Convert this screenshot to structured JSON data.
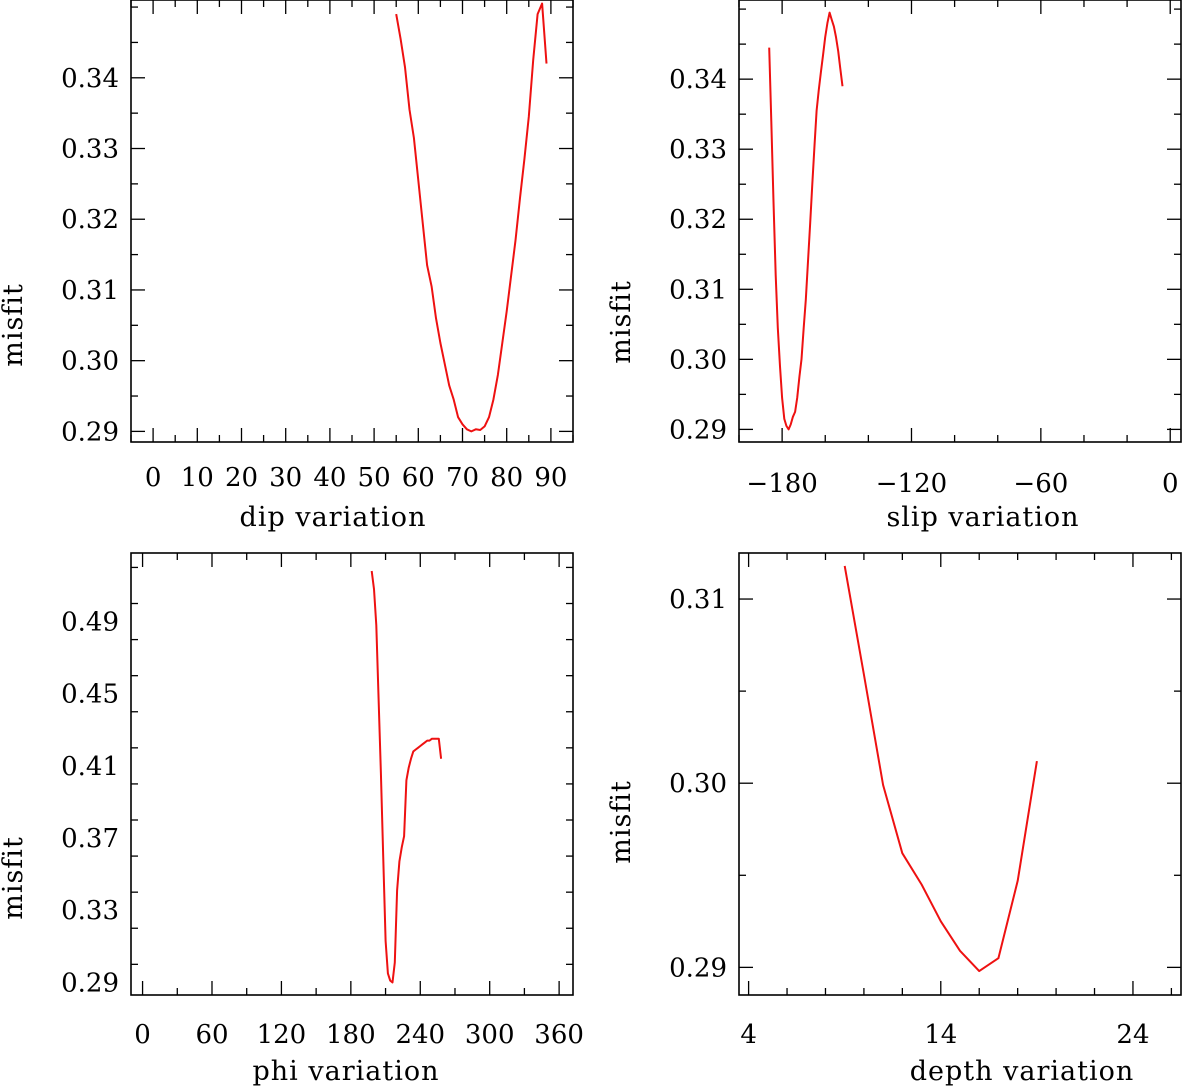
{
  "colors": {
    "curve": "#ee1111",
    "axis": "#000000",
    "background": "#ffffff"
  },
  "chart_data": [
    {
      "type": "line",
      "title": "",
      "xlabel": "dip    variation",
      "ylabel": "misfit",
      "xlim": [
        -5,
        95
      ],
      "ylim": [
        0.2885,
        0.351
      ],
      "xticks": [
        0,
        10,
        20,
        30,
        40,
        50,
        60,
        70,
        80,
        90
      ],
      "xtick_labels": [
        "0",
        "10",
        "20",
        "30",
        "40",
        "50",
        "60",
        "70",
        "80",
        "90"
      ],
      "x_minor_step": 5,
      "yticks": [
        0.29,
        0.3,
        0.31,
        0.32,
        0.33,
        0.34
      ],
      "ytick_labels": [
        "0.29",
        "0.30",
        "0.31",
        "0.32",
        "0.33",
        "0.34"
      ],
      "y_minor_step": 0.005,
      "grid": false,
      "series": [
        {
          "name": "misfit",
          "x": [
            55,
            56,
            57,
            58,
            59,
            60,
            61,
            62,
            63,
            64,
            65,
            66,
            67,
            68,
            69,
            70,
            71,
            72,
            73,
            74,
            75,
            76,
            77,
            78,
            79,
            80,
            81,
            82,
            83,
            84,
            85,
            86,
            87,
            88,
            89
          ],
          "y": [
            0.349,
            0.3455,
            0.3415,
            0.3355,
            0.3315,
            0.3255,
            0.3195,
            0.3135,
            0.3105,
            0.306,
            0.3025,
            0.2995,
            0.2965,
            0.2945,
            0.292,
            0.291,
            0.2903,
            0.29,
            0.2903,
            0.2902,
            0.2907,
            0.292,
            0.2945,
            0.298,
            0.3025,
            0.307,
            0.312,
            0.317,
            0.323,
            0.3285,
            0.3345,
            0.3425,
            0.349,
            0.3505,
            0.342
          ],
          "color": "#ee1111"
        }
      ]
    },
    {
      "type": "line",
      "title": "",
      "xlabel": "slip    variation",
      "ylabel": "misfit",
      "xlim": [
        -200,
        5
      ],
      "ylim": [
        0.2882,
        0.3513
      ],
      "xticks": [
        -180,
        -120,
        -60,
        0
      ],
      "xtick_labels": [
        "−180",
        "−120",
        "−60",
        "0"
      ],
      "x_minor_step": 20,
      "yticks": [
        0.29,
        0.3,
        0.31,
        0.32,
        0.33,
        0.34
      ],
      "ytick_labels": [
        "0.29",
        "0.30",
        "0.31",
        "0.32",
        "0.33",
        "0.34"
      ],
      "y_minor_step": 0.005,
      "grid": false,
      "series": [
        {
          "name": "misfit",
          "x": [
            -186,
            -185,
            -184,
            -183,
            -182,
            -181,
            -180,
            -179,
            -178,
            -177,
            -176,
            -175,
            -174,
            -173,
            -172,
            -171,
            -170,
            -169,
            -168,
            -167,
            -166,
            -165,
            -164,
            -163,
            -162,
            -161,
            -160,
            -159,
            -158,
            -157,
            -156,
            -155,
            -154,
            -153,
            -152
          ],
          "y": [
            0.3445,
            0.334,
            0.3225,
            0.312,
            0.3045,
            0.299,
            0.2945,
            0.2915,
            0.2905,
            0.29,
            0.2907,
            0.2918,
            0.2925,
            0.2945,
            0.2975,
            0.3,
            0.3045,
            0.3085,
            0.314,
            0.3195,
            0.325,
            0.3305,
            0.3355,
            0.3385,
            0.341,
            0.3435,
            0.346,
            0.348,
            0.3495,
            0.3485,
            0.3475,
            0.346,
            0.344,
            0.3415,
            0.339
          ],
          "color": "#ee1111"
        }
      ]
    },
    {
      "type": "line",
      "title": "",
      "xlabel": "phi    variation",
      "ylabel": "misfit",
      "xlim": [
        -10,
        372
      ],
      "ylim": [
        0.283,
        0.528
      ],
      "xticks": [
        0,
        60,
        120,
        180,
        240,
        300,
        360
      ],
      "xtick_labels": [
        "0",
        "60",
        "120",
        "180",
        "240",
        "300",
        "360"
      ],
      "x_minor_step": 30,
      "yticks": [
        0.29,
        0.33,
        0.37,
        0.41,
        0.45,
        0.49
      ],
      "ytick_labels": [
        "0.29",
        "0.33",
        "0.37",
        "0.41",
        "0.45",
        "0.49"
      ],
      "y_minor_step": 0.02,
      "grid": false,
      "series": [
        {
          "name": "misfit",
          "x": [
            198,
            200,
            202,
            204,
            206,
            208,
            210,
            212,
            214,
            216,
            218,
            220,
            222,
            224,
            226,
            228,
            230,
            232,
            234,
            236,
            238,
            240,
            242,
            244,
            246,
            248,
            250,
            252,
            254,
            256,
            258
          ],
          "y": [
            0.518,
            0.508,
            0.488,
            0.447,
            0.406,
            0.36,
            0.313,
            0.295,
            0.291,
            0.29,
            0.301,
            0.341,
            0.357,
            0.365,
            0.371,
            0.402,
            0.409,
            0.414,
            0.418,
            0.419,
            0.42,
            0.421,
            0.422,
            0.423,
            0.424,
            0.424,
            0.425,
            0.425,
            0.425,
            0.425,
            0.414
          ],
          "color": "#ee1111"
        }
      ]
    },
    {
      "type": "line",
      "title": "",
      "xlabel": "depth    variation",
      "ylabel": "misfit",
      "xlim": [
        3.5,
        26.5
      ],
      "ylim": [
        0.2885,
        0.3125
      ],
      "xticks": [
        4,
        14,
        24
      ],
      "xtick_labels": [
        "4",
        "14",
        "24"
      ],
      "x_minor_step": 2,
      "yticks": [
        0.29,
        0.3,
        0.31
      ],
      "ytick_labels": [
        "0.29",
        "0.30",
        "0.31"
      ],
      "y_minor_step": 0.005,
      "grid": false,
      "series": [
        {
          "name": "misfit",
          "x": [
            9,
            10,
            11,
            12,
            13,
            14,
            15,
            16,
            17,
            18,
            19
          ],
          "y": [
            0.3118,
            0.3059,
            0.2999,
            0.2962,
            0.2945,
            0.2925,
            0.2909,
            0.2898,
            0.2905,
            0.2947,
            0.3012
          ],
          "color": "#ee1111"
        }
      ]
    }
  ]
}
